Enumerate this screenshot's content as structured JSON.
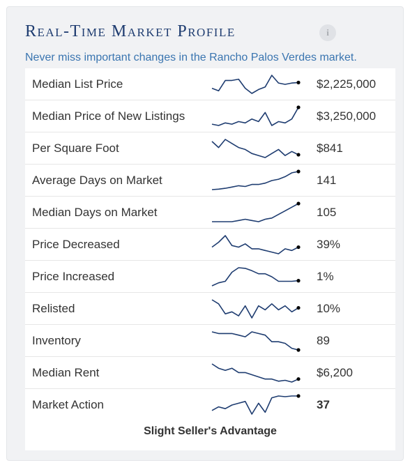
{
  "widget": {
    "title": "Real-Time Market Profile",
    "info_icon_text": "i",
    "subtitle": "Never miss important changes in the Rancho Palos Verdes market.",
    "line_color": "#1e3c70",
    "rows": [
      {
        "label": "Median List Price",
        "value": "$2,225,000",
        "bold": false,
        "trend": [
          40,
          30,
          70,
          70,
          75,
          40,
          20,
          35,
          45,
          90,
          60,
          55,
          60,
          62
        ]
      },
      {
        "label": "Median Price of New Listings",
        "value": "$3,250,000",
        "bold": false,
        "trend": [
          35,
          30,
          40,
          35,
          45,
          40,
          55,
          45,
          80,
          30,
          45,
          40,
          55,
          100
        ]
      },
      {
        "label": "Per Square Foot",
        "value": "$841",
        "bold": false,
        "trend": [
          75,
          60,
          80,
          70,
          60,
          55,
          45,
          40,
          35,
          45,
          55,
          40,
          50,
          42
        ]
      },
      {
        "label": "Average Days on Market",
        "value": "141",
        "bold": false,
        "trend": [
          10,
          12,
          15,
          20,
          25,
          22,
          30,
          30,
          35,
          45,
          50,
          60,
          75,
          80
        ]
      },
      {
        "label": "Median Days on Market",
        "value": "105",
        "bold": false,
        "trend": [
          10,
          10,
          10,
          10,
          15,
          20,
          15,
          10,
          20,
          25,
          40,
          55,
          70,
          85
        ]
      },
      {
        "label": "Price Decreased",
        "value": "39%",
        "bold": false,
        "trend": [
          35,
          50,
          70,
          40,
          35,
          45,
          30,
          30,
          25,
          20,
          15,
          30,
          25,
          35
        ]
      },
      {
        "label": "Price Increased",
        "value": "1%",
        "bold": false,
        "trend": [
          10,
          20,
          25,
          55,
          70,
          68,
          60,
          50,
          50,
          40,
          25,
          25,
          25,
          27
        ]
      },
      {
        "label": "Relisted",
        "value": "10%",
        "bold": false,
        "trend": [
          70,
          60,
          35,
          40,
          30,
          55,
          25,
          55,
          45,
          60,
          45,
          55,
          40,
          50
        ]
      },
      {
        "label": "Inventory",
        "value": "89",
        "bold": false,
        "trend": [
          90,
          85,
          85,
          85,
          80,
          75,
          90,
          85,
          80,
          60,
          60,
          55,
          40,
          35
        ]
      },
      {
        "label": "Median Rent",
        "value": "$6,200",
        "bold": false,
        "trend": [
          80,
          70,
          65,
          70,
          60,
          60,
          55,
          50,
          45,
          45,
          40,
          42,
          38,
          45
        ]
      },
      {
        "label": "Market Action",
        "value": "37",
        "bold": true,
        "trend": [
          40,
          50,
          45,
          55,
          60,
          65,
          30,
          60,
          35,
          75,
          80,
          78,
          80,
          80
        ]
      }
    ],
    "footer": "Slight Seller's Advantage"
  }
}
